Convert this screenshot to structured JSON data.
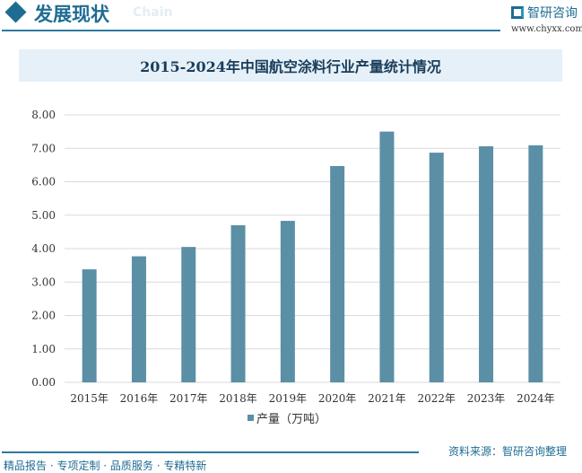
{
  "header": {
    "title": "发展现状",
    "subtitle": "Chain",
    "logo_text": "智研咨询",
    "url": "www.chyxx.com"
  },
  "chart_data": {
    "type": "bar",
    "title": "2015-2024年中国航空涂料行业产量统计情况",
    "categories": [
      "2015年",
      "2016年",
      "2017年",
      "2018年",
      "2019年",
      "2020年",
      "2021年",
      "2022年",
      "2023年",
      "2024年"
    ],
    "series": [
      {
        "name": "产量（万吨）",
        "values": [
          3.38,
          3.77,
          4.05,
          4.7,
          4.83,
          6.47,
          7.5,
          6.87,
          7.06,
          7.09
        ]
      }
    ],
    "yticks": [
      "0.00",
      "1.00",
      "2.00",
      "3.00",
      "4.00",
      "5.00",
      "6.00",
      "7.00",
      "8.00"
    ],
    "ylim": [
      0,
      8
    ],
    "grid": true,
    "legend": "bottom",
    "color": "#5b8fa6"
  },
  "footer": {
    "source": "资料来源：智研咨询整理",
    "slogan": "精品报告 · 专项定制 · 品质服务 · 专精特新"
  }
}
